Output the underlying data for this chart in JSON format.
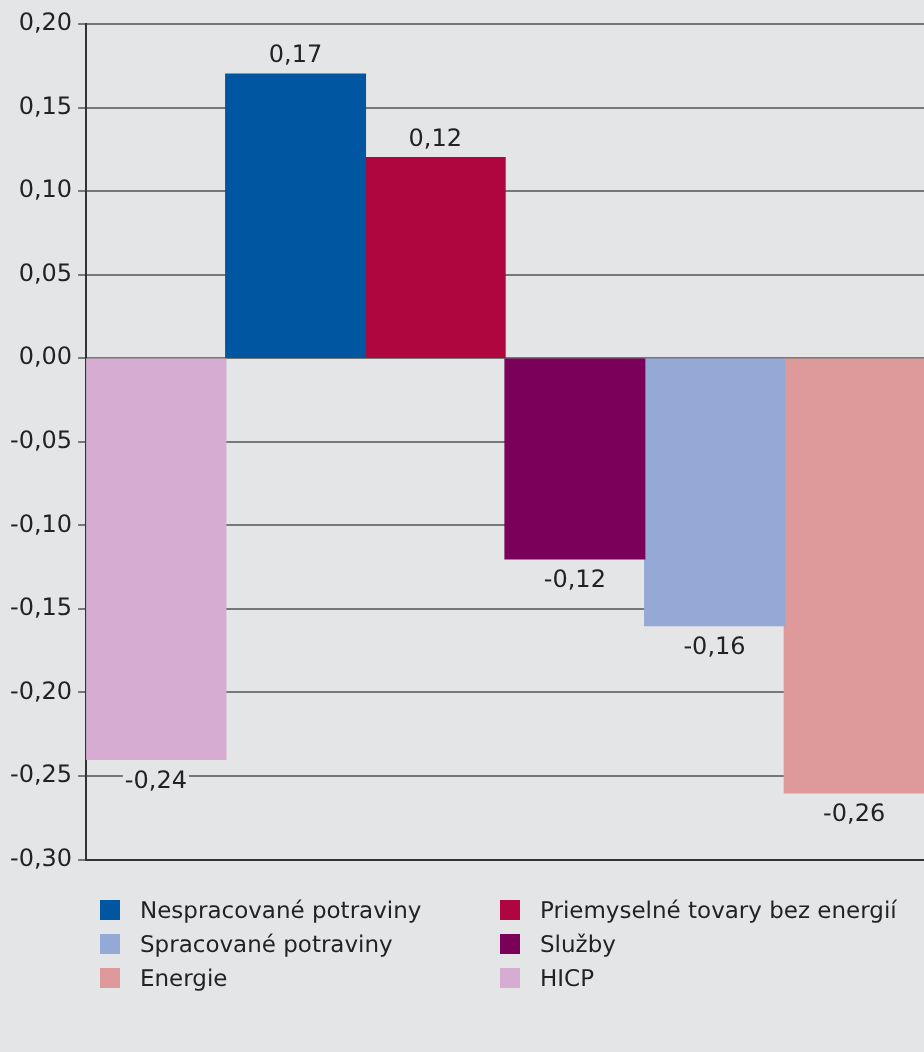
{
  "chart_data": {
    "type": "bar",
    "categories": [
      null
    ],
    "series": [
      {
        "name": "HICP",
        "color": "#d6acd2",
        "values": [
          -0.24
        ],
        "value_labels": [
          "-0,24"
        ]
      },
      {
        "name": "Nespracované potraviny",
        "color": "#0056a0",
        "values": [
          0.17
        ],
        "value_labels": [
          "0,17"
        ]
      },
      {
        "name": "Priemyselné tovary bez energií",
        "color": "#b0063f",
        "values": [
          0.12
        ],
        "value_labels": [
          "0,12"
        ]
      },
      {
        "name": "Služby",
        "color": "#7b005a",
        "values": [
          -0.12
        ],
        "value_labels": [
          "-0,12"
        ]
      },
      {
        "name": "Spracované potraviny",
        "color": "#94a9d6",
        "values": [
          -0.16
        ],
        "value_labels": [
          "-0,16"
        ]
      },
      {
        "name": "Energie",
        "color": "#de9a9a",
        "values": [
          -0.26
        ],
        "value_labels": [
          "-0,26"
        ]
      }
    ],
    "ylim": [
      -0.3,
      0.2
    ],
    "yticks": [
      {
        "value": -0.3,
        "label": "-0,30"
      },
      {
        "value": -0.25,
        "label": "-0,25"
      },
      {
        "value": -0.2,
        "label": "-0,20"
      },
      {
        "value": -0.15,
        "label": "-0,15"
      },
      {
        "value": -0.1,
        "label": "-0,10"
      },
      {
        "value": -0.05,
        "label": "-0,05"
      },
      {
        "value": 0,
        "label": "0,00"
      },
      {
        "value": 0.05,
        "label": "0,05"
      },
      {
        "value": 0.1,
        "label": "0,10"
      },
      {
        "value": 0.15,
        "label": "0,15"
      },
      {
        "value": 0.2,
        "label": "0,20"
      }
    ],
    "grid": "y",
    "legend": "bottom"
  }
}
